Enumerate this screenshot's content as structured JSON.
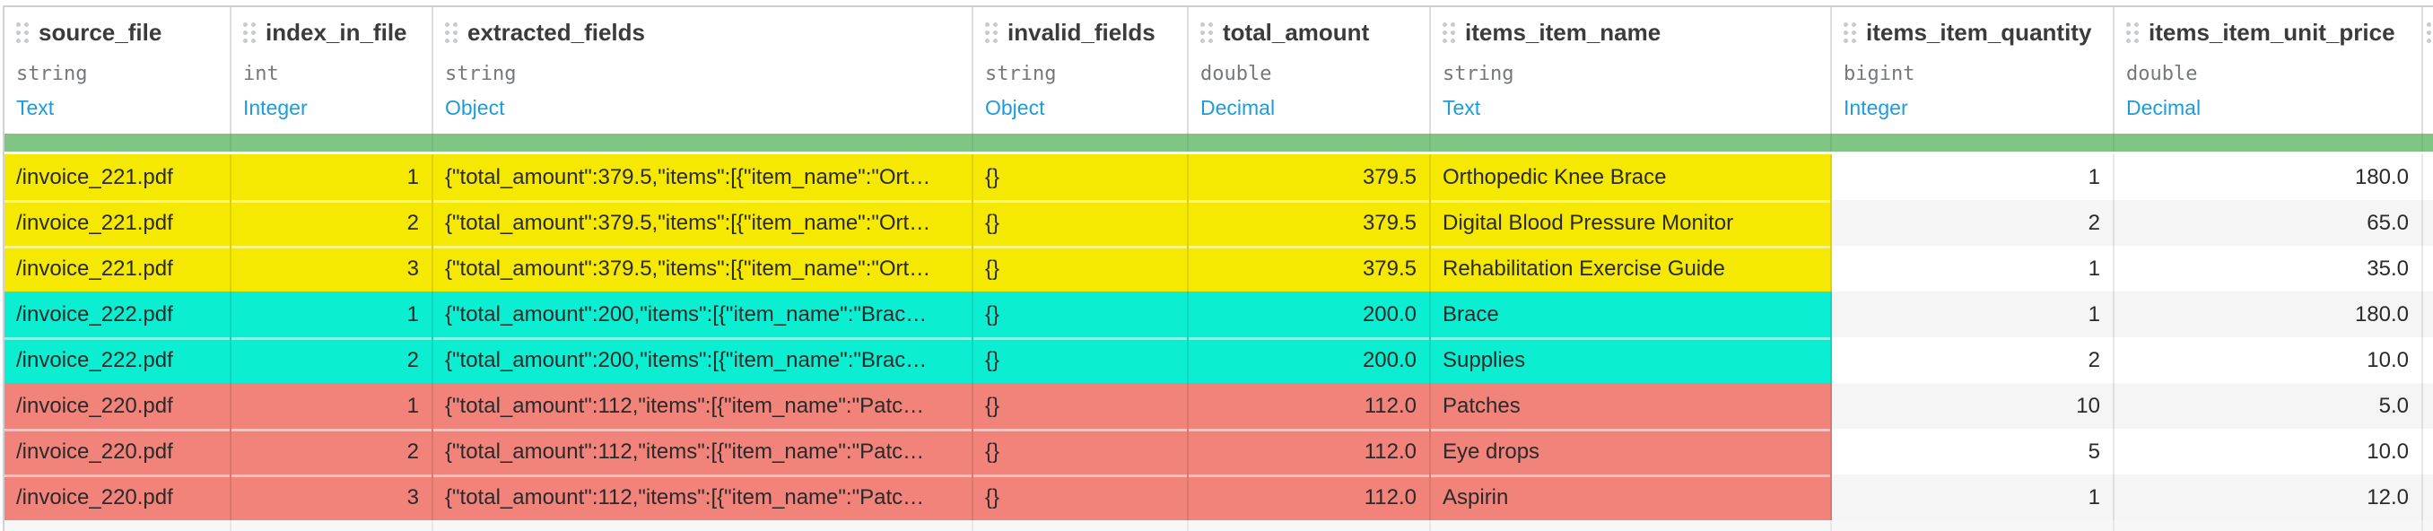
{
  "table": {
    "columns": [
      {
        "name": "source_file",
        "type": "string",
        "kind": "Text",
        "align": "left"
      },
      {
        "name": "index_in_file",
        "type": "int",
        "kind": "Integer",
        "align": "right"
      },
      {
        "name": "extracted_fields",
        "type": "string",
        "kind": "Object",
        "align": "left"
      },
      {
        "name": "invalid_fields",
        "type": "string",
        "kind": "Object",
        "align": "left"
      },
      {
        "name": "total_amount",
        "type": "double",
        "kind": "Decimal",
        "align": "right"
      },
      {
        "name": "items_item_name",
        "type": "string",
        "kind": "Text",
        "align": "left"
      },
      {
        "name": "items_item_quantity",
        "type": "bigint",
        "kind": "Integer",
        "align": "right"
      },
      {
        "name": "items_item_unit_price",
        "type": "double",
        "kind": "Decimal",
        "align": "right"
      }
    ],
    "rows": [
      {
        "highlight": "yellow",
        "group_start": true,
        "cells": [
          "/invoice_221.pdf",
          "1",
          "{\"total_amount\":379.5,\"items\":[{\"item_name\":\"Ort…",
          "{}",
          "379.5",
          "Orthopedic Knee Brace",
          "1",
          "180.0"
        ]
      },
      {
        "highlight": "yellow",
        "group_start": false,
        "cells": [
          "/invoice_221.pdf",
          "2",
          "{\"total_amount\":379.5,\"items\":[{\"item_name\":\"Ort…",
          "{}",
          "379.5",
          "Digital Blood Pressure Monitor",
          "2",
          "65.0"
        ]
      },
      {
        "highlight": "yellow",
        "group_start": false,
        "cells": [
          "/invoice_221.pdf",
          "3",
          "{\"total_amount\":379.5,\"items\":[{\"item_name\":\"Ort…",
          "{}",
          "379.5",
          "Rehabilitation Exercise Guide",
          "1",
          "35.0"
        ]
      },
      {
        "highlight": "cyan",
        "group_start": true,
        "cells": [
          "/invoice_222.pdf",
          "1",
          "{\"total_amount\":200,\"items\":[{\"item_name\":\"Brac…",
          "{}",
          "200.0",
          "Brace",
          "1",
          "180.0"
        ]
      },
      {
        "highlight": "cyan",
        "group_start": false,
        "cells": [
          "/invoice_222.pdf",
          "2",
          "{\"total_amount\":200,\"items\":[{\"item_name\":\"Brac…",
          "{}",
          "200.0",
          "Supplies",
          "2",
          "10.0"
        ]
      },
      {
        "highlight": "red",
        "group_start": true,
        "cells": [
          "/invoice_220.pdf",
          "1",
          "{\"total_amount\":112,\"items\":[{\"item_name\":\"Patc…",
          "{}",
          "112.0",
          "Patches",
          "10",
          "5.0"
        ]
      },
      {
        "highlight": "red",
        "group_start": false,
        "cells": [
          "/invoice_220.pdf",
          "2",
          "{\"total_amount\":112,\"items\":[{\"item_name\":\"Patc…",
          "{}",
          "112.0",
          "Eye drops",
          "5",
          "10.0"
        ]
      },
      {
        "highlight": "red",
        "group_start": false,
        "cells": [
          "/invoice_220.pdf",
          "3",
          "{\"total_amount\":112,\"items\":[{\"item_name\":\"Patc…",
          "{}",
          "112.0",
          "Aspirin",
          "1",
          "12.0"
        ]
      }
    ],
    "colors": {
      "highlights": {
        "yellow": "#f5e801",
        "cyan": "#0beed2",
        "red": "#f2837b"
      },
      "band_green": "#7fc584",
      "zebra_gray": "#f5f5f5",
      "link_blue": "#1d9cd9"
    },
    "highlighted_column_count": 6
  }
}
